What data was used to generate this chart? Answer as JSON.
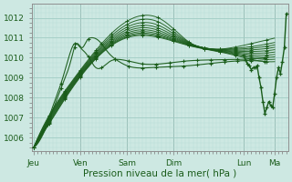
{
  "title": "Pression niveau de la mer( hPa )",
  "ylabel_ticks": [
    1006,
    1007,
    1008,
    1009,
    1010,
    1011,
    1012
  ],
  "xlabels": [
    "Jeu",
    "Ven",
    "Sam",
    "Dim",
    "Lun",
    "Ma"
  ],
  "ylim": [
    1005.3,
    1012.7
  ],
  "xlim": [
    -2,
    262
  ],
  "background_color": "#cde8e2",
  "grid_color_minor": "#b8ddd6",
  "grid_color_major": "#a0ccc4",
  "line_color": "#1a5c1a",
  "marker_color": "#1a5c1a",
  "day_sep_color": "#888888",
  "xpos_days": [
    0,
    48,
    96,
    144,
    216,
    248
  ],
  "series_fan": [
    {
      "x": [
        0,
        48,
        96,
        144,
        192,
        240
      ],
      "y": [
        1005.5,
        1008.0,
        1009.5,
        1010.5,
        1009.8,
        1009.8
      ]
    },
    {
      "x": [
        0,
        48,
        96,
        144,
        192,
        240
      ],
      "y": [
        1005.5,
        1008.2,
        1009.6,
        1010.5,
        1010.0,
        1009.5
      ]
    },
    {
      "x": [
        0,
        48,
        96,
        144,
        192,
        240
      ],
      "y": [
        1005.5,
        1008.3,
        1009.8,
        1010.6,
        1010.1,
        1009.7
      ]
    },
    {
      "x": [
        0,
        48,
        96,
        144,
        192,
        240
      ],
      "y": [
        1005.5,
        1008.5,
        1010.2,
        1010.7,
        1010.2,
        1010.0
      ]
    },
    {
      "x": [
        0,
        48,
        96,
        144,
        192,
        240
      ],
      "y": [
        1005.5,
        1008.6,
        1010.5,
        1010.8,
        1010.3,
        1010.2
      ]
    },
    {
      "x": [
        0,
        48,
        96,
        144,
        192,
        240
      ],
      "y": [
        1005.5,
        1008.7,
        1010.8,
        1011.0,
        1010.4,
        1010.4
      ]
    },
    {
      "x": [
        0,
        48,
        96,
        144,
        192,
        240
      ],
      "y": [
        1005.5,
        1008.8,
        1011.0,
        1011.1,
        1010.5,
        1010.5
      ]
    },
    {
      "x": [
        0,
        48,
        96,
        144,
        192,
        240
      ],
      "y": [
        1005.5,
        1008.9,
        1011.2,
        1011.2,
        1010.6,
        1010.7
      ]
    },
    {
      "x": [
        0,
        48,
        96,
        144,
        192,
        240
      ],
      "y": [
        1005.5,
        1009.0,
        1011.4,
        1011.3,
        1010.7,
        1010.9
      ]
    },
    {
      "x": [
        0,
        48,
        96,
        144,
        192,
        240
      ],
      "y": [
        1005.5,
        1009.1,
        1011.6,
        1011.4,
        1010.8,
        1011.1
      ]
    }
  ],
  "series_early": [
    {
      "x": [
        0,
        2,
        4,
        6,
        8,
        10,
        12,
        14,
        16,
        18,
        20,
        22,
        24,
        26,
        28,
        30,
        32,
        34,
        36,
        38,
        40,
        42,
        44,
        46,
        48,
        50,
        52,
        54,
        56,
        58,
        60,
        62,
        64,
        66,
        68,
        70,
        72,
        74,
        76,
        78,
        80,
        82,
        84,
        86,
        88,
        90,
        92,
        94,
        96
      ],
      "y": [
        1005.5,
        1005.7,
        1005.9,
        1006.2,
        1006.6,
        1007.0,
        1007.3,
        1007.6,
        1007.9,
        1008.1,
        1008.4,
        1008.7,
        1009.0,
        1009.3,
        1009.6,
        1009.8,
        1010.0,
        1010.3,
        1010.6,
        1010.8,
        1011.0,
        1011.1,
        1011.1,
        1010.9,
        1010.7,
        1010.4,
        1010.1,
        1009.9,
        1009.8,
        1009.7,
        1009.7,
        1009.8,
        1009.9,
        1010.0,
        1010.1,
        1010.3,
        1010.5,
        1010.7,
        1010.8,
        1010.8,
        1010.7,
        1010.6,
        1010.4,
        1010.2,
        1010.0,
        1009.9,
        1009.8,
        1009.7,
        1009.6
      ]
    },
    {
      "x": [
        0,
        2,
        4,
        6,
        8,
        10,
        12,
        14,
        16,
        18,
        20,
        22,
        24,
        26,
        28,
        30,
        32,
        34,
        36,
        38,
        40,
        42,
        44,
        46,
        48,
        50,
        52,
        54,
        56,
        58,
        60,
        62,
        64,
        66,
        68,
        70,
        72,
        74,
        76,
        78,
        80,
        82,
        84,
        86,
        88,
        90,
        92,
        94,
        96
      ],
      "y": [
        1005.5,
        1005.7,
        1006.0,
        1006.3,
        1006.7,
        1007.1,
        1007.5,
        1007.8,
        1008.1,
        1008.4,
        1008.7,
        1009.0,
        1009.3,
        1009.6,
        1009.9,
        1010.1,
        1010.4,
        1010.6,
        1010.8,
        1010.9,
        1011.0,
        1011.1,
        1011.0,
        1010.8,
        1010.6,
        1010.3,
        1010.0,
        1009.8,
        1009.6,
        1009.5,
        1009.5,
        1009.6,
        1009.7,
        1009.9,
        1010.1,
        1010.2,
        1010.3,
        1010.4,
        1010.3,
        1010.2,
        1010.1,
        1009.9,
        1009.8,
        1009.7,
        1009.6,
        1009.5,
        1009.5,
        1009.4,
        1009.4
      ]
    }
  ],
  "volatile_series": {
    "x": [
      216,
      218,
      220,
      222,
      224,
      226,
      228,
      230,
      232,
      234,
      236,
      238,
      240,
      242,
      244,
      246,
      248,
      250,
      252,
      254,
      256,
      258,
      260
    ],
    "y": [
      1010.1,
      1009.9,
      1009.7,
      1009.6,
      1009.4,
      1009.5,
      1009.5,
      1009.6,
      1009.0,
      1008.5,
      1007.8,
      1007.2,
      1007.5,
      1007.8,
      1007.6,
      1007.5,
      1008.2,
      1009.0,
      1009.5,
      1009.2,
      1009.8,
      1010.5,
      1012.2
    ]
  }
}
